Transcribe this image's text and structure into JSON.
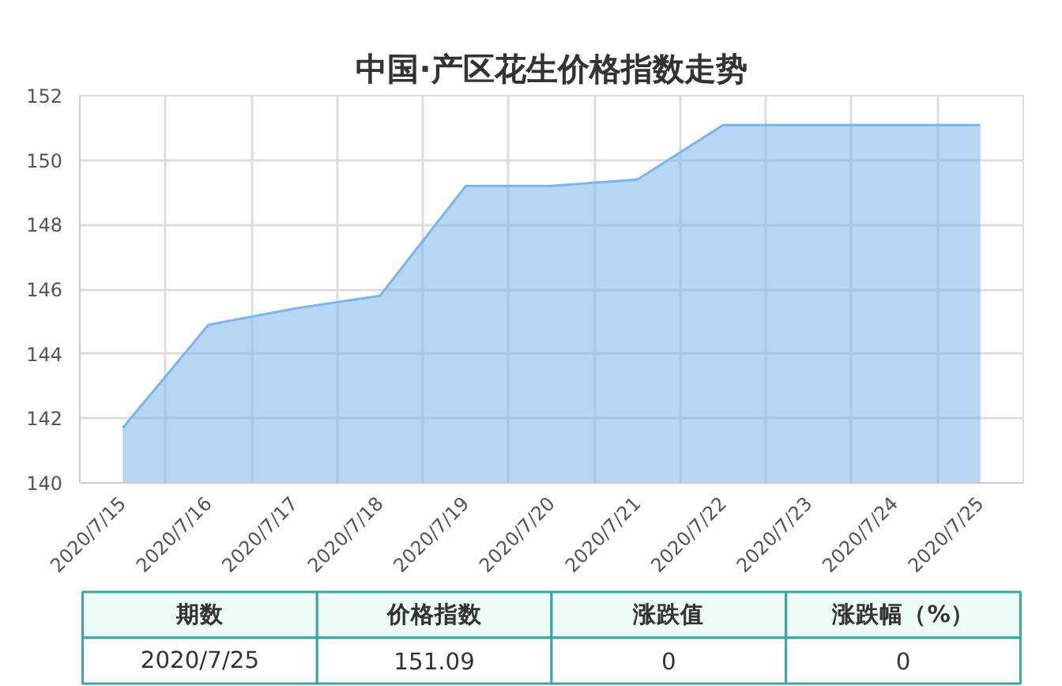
{
  "chart_data": {
    "type": "area",
    "title": "中国·产区花生价格指数走势",
    "categories": [
      "2020/7/15",
      "2020/7/16",
      "2020/7/17",
      "2020/7/18",
      "2020/7/19",
      "2020/7/20",
      "2020/7/21",
      "2020/7/22",
      "2020/7/23",
      "2020/7/24",
      "2020/7/25"
    ],
    "series": [
      {
        "color": "#7cb5ec",
        "values": [
          141.7,
          144.9,
          145.4,
          145.8,
          149.2,
          149.2,
          149.4,
          151.09,
          151.09,
          151.09,
          151.09
        ]
      }
    ],
    "ylim": [
      140,
      152
    ],
    "yticks": [
      140,
      142,
      144,
      146,
      148,
      150,
      152
    ],
    "grid": true,
    "annotations": [
      "期数",
      "价格指数",
      "涨跌值",
      "涨跌幅（%）",
      "2020/7/25",
      "151.09",
      "0",
      "0"
    ]
  }
}
